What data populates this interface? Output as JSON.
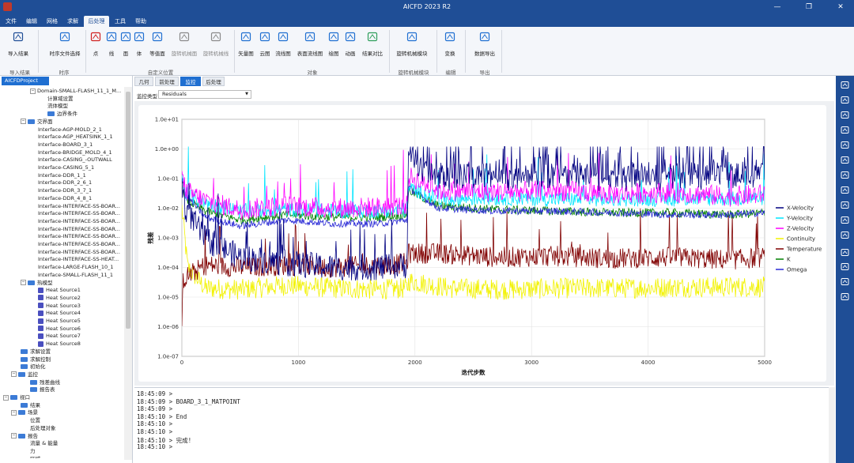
{
  "window": {
    "title": "AICFD 2023 R2",
    "min": "—",
    "restore": "❐",
    "close": "✕"
  },
  "menu": [
    {
      "label": "文件",
      "active": false,
      "x": 2,
      "w": 24
    },
    {
      "label": "编辑",
      "active": false,
      "x": 28,
      "w": 24
    },
    {
      "label": "网格",
      "active": false,
      "x": 54,
      "w": 24
    },
    {
      "label": "求解",
      "active": false,
      "x": 80,
      "w": 24
    },
    {
      "label": "后处理",
      "active": true,
      "x": 106,
      "w": 32
    },
    {
      "label": "工具",
      "active": false,
      "x": 140,
      "w": 24
    },
    {
      "label": "帮助",
      "active": false,
      "x": 166,
      "w": 24
    }
  ],
  "ribbon": {
    "buttons": [
      {
        "name": "import-results",
        "label": "导入结果",
        "icon": "import-icon"
      },
      {
        "name": "time-series-select",
        "label": "时序文件选择",
        "icon": "clock-icon"
      },
      {
        "name": "point",
        "label": "点",
        "icon": "point-icon"
      },
      {
        "name": "line",
        "label": "线",
        "icon": "line-icon"
      },
      {
        "name": "surface",
        "label": "面",
        "icon": "surface-icon"
      },
      {
        "name": "volume",
        "label": "体",
        "icon": "volume-icon"
      },
      {
        "name": "isosurface",
        "label": "等值面",
        "icon": "isosurface-icon"
      },
      {
        "name": "rotating-surface",
        "label": "旋转机械面",
        "icon": "rotating-surface-icon"
      },
      {
        "name": "rotating-line",
        "label": "旋转机械线",
        "icon": "rotating-line-icon"
      },
      {
        "name": "vector-plot",
        "label": "矢量图",
        "icon": "vector-icon"
      },
      {
        "name": "contour-plot",
        "label": "云图",
        "icon": "contour-icon"
      },
      {
        "name": "streamline-plot",
        "label": "流线图",
        "icon": "streamline-icon"
      },
      {
        "name": "surface-streamline",
        "label": "表面流线图",
        "icon": "surface-streamline-icon"
      },
      {
        "name": "xy-plot",
        "label": "绘图",
        "icon": "plot-icon"
      },
      {
        "name": "animation",
        "label": "动画",
        "icon": "animation-icon"
      },
      {
        "name": "result-compare",
        "label": "结果对比",
        "icon": "compare-icon"
      },
      {
        "name": "rotating-module",
        "label": "旋转机械模块",
        "icon": "rotating-module-icon"
      },
      {
        "name": "transform",
        "label": "变换",
        "icon": "transform-icon"
      },
      {
        "name": "data-export",
        "label": "数据导出",
        "icon": "export-icon"
      }
    ],
    "groups": [
      "导入结果",
      "时序",
      "自定义位置",
      "对象",
      "旋转机械模块",
      "编辑",
      "导出"
    ]
  },
  "project_tab": "AICFDProject",
  "tree": [
    {
      "label": "Domain-SMALL-FLASH_11_1_M...",
      "indent": 38,
      "toggle": "−",
      "icon": "none"
    },
    {
      "label": "计算域设置",
      "indent": 60,
      "toggle": "",
      "icon": "none"
    },
    {
      "label": "流体模型",
      "indent": 60,
      "toggle": "",
      "icon": "none"
    },
    {
      "label": "边界条件",
      "indent": 60,
      "toggle": "",
      "icon": "folder"
    },
    {
      "label": "交界面",
      "indent": 26,
      "toggle": "−",
      "icon": "folder"
    },
    {
      "label": "Interface-AGP-MOLD_2_1",
      "indent": 48,
      "toggle": "",
      "icon": "none"
    },
    {
      "label": "Interface-AGP_HEATSINK_1_1",
      "indent": 48,
      "toggle": "",
      "icon": "none"
    },
    {
      "label": "Interface-BOARD_3_1",
      "indent": 48,
      "toggle": "",
      "icon": "none"
    },
    {
      "label": "Interface-BRIDGE_MOLD_4_1",
      "indent": 48,
      "toggle": "",
      "icon": "none"
    },
    {
      "label": "Interface-CASING_-OUTWALL",
      "indent": 48,
      "toggle": "",
      "icon": "none"
    },
    {
      "label": "Interface-CASING_5_1",
      "indent": 48,
      "toggle": "",
      "icon": "none"
    },
    {
      "label": "Interface-DDR_1_1",
      "indent": 48,
      "toggle": "",
      "icon": "none"
    },
    {
      "label": "Interface-DDR_2_6_1",
      "indent": 48,
      "toggle": "",
      "icon": "none"
    },
    {
      "label": "Interface-DDR_3_7_1",
      "indent": 48,
      "toggle": "",
      "icon": "none"
    },
    {
      "label": "Interface-DDR_4_8_1",
      "indent": 48,
      "toggle": "",
      "icon": "none"
    },
    {
      "label": "Interface-INTERFACE-SS-BOAR...",
      "indent": 48,
      "toggle": "",
      "icon": "none"
    },
    {
      "label": "Interface-INTERFACE-SS-BOAR...",
      "indent": 48,
      "toggle": "",
      "icon": "none"
    },
    {
      "label": "Interface-INTERFACE-SS-BOAR...",
      "indent": 48,
      "toggle": "",
      "icon": "none"
    },
    {
      "label": "Interface-INTERFACE-SS-BOAR...",
      "indent": 48,
      "toggle": "",
      "icon": "none"
    },
    {
      "label": "Interface-INTERFACE-SS-BOAR...",
      "indent": 48,
      "toggle": "",
      "icon": "none"
    },
    {
      "label": "Interface-INTERFACE-SS-BOAR...",
      "indent": 48,
      "toggle": "",
      "icon": "none"
    },
    {
      "label": "Interface-INTERFACE-SS-BOAR...",
      "indent": 48,
      "toggle": "",
      "icon": "none"
    },
    {
      "label": "Interface-INTERFACE-SS-HEAT...",
      "indent": 48,
      "toggle": "",
      "icon": "none"
    },
    {
      "label": "Interface-LARGE-FLASH_10_1",
      "indent": 48,
      "toggle": "",
      "icon": "none"
    },
    {
      "label": "Interface-SMALL-FLASH_11_1",
      "indent": 48,
      "toggle": "",
      "icon": "none"
    },
    {
      "label": "热模型",
      "indent": 26,
      "toggle": "−",
      "icon": "folder"
    },
    {
      "label": "Heat Source1",
      "indent": 48,
      "toggle": "",
      "icon": "source"
    },
    {
      "label": "Heat Source2",
      "indent": 48,
      "toggle": "",
      "icon": "source"
    },
    {
      "label": "Heat Source3",
      "indent": 48,
      "toggle": "",
      "icon": "source"
    },
    {
      "label": "Heat Source4",
      "indent": 48,
      "toggle": "",
      "icon": "source"
    },
    {
      "label": "Heat Source5",
      "indent": 48,
      "toggle": "",
      "icon": "source"
    },
    {
      "label": "Heat Source6",
      "indent": 48,
      "toggle": "",
      "icon": "source"
    },
    {
      "label": "Heat Source7",
      "indent": 48,
      "toggle": "",
      "icon": "source"
    },
    {
      "label": "Heat Source8",
      "indent": 48,
      "toggle": "",
      "icon": "source"
    },
    {
      "label": "求解设置",
      "indent": 26,
      "toggle": "",
      "icon": "folder"
    },
    {
      "label": "求解控制",
      "indent": 26,
      "toggle": "",
      "icon": "folder"
    },
    {
      "label": "初始化",
      "indent": 26,
      "toggle": "",
      "icon": "folder"
    },
    {
      "label": "监控",
      "indent": 14,
      "toggle": "−",
      "icon": "folder"
    },
    {
      "label": "残差曲线",
      "indent": 38,
      "toggle": "",
      "icon": "folder"
    },
    {
      "label": "报告表",
      "indent": 38,
      "toggle": "",
      "icon": "folder"
    },
    {
      "label": "视口",
      "indent": 4,
      "toggle": "−",
      "icon": "folder"
    },
    {
      "label": "结果",
      "indent": 26,
      "toggle": "",
      "icon": "folder"
    },
    {
      "label": "场景",
      "indent": 14,
      "toggle": "−",
      "icon": "folder"
    },
    {
      "label": "位置",
      "indent": 38,
      "toggle": "",
      "icon": "none"
    },
    {
      "label": "后处理对象",
      "indent": 38,
      "toggle": "",
      "icon": "none"
    },
    {
      "label": "报告",
      "indent": 14,
      "toggle": "−",
      "icon": "folder"
    },
    {
      "label": "流量 & 能量",
      "indent": 38,
      "toggle": "",
      "icon": "none"
    },
    {
      "label": "力",
      "indent": 38,
      "toggle": "",
      "icon": "none"
    },
    {
      "label": "区域",
      "indent": 38,
      "toggle": "",
      "icon": "none"
    }
  ],
  "tabs": [
    {
      "label": "几何",
      "active": false
    },
    {
      "label": "前处理",
      "active": false
    },
    {
      "label": "监控",
      "active": true
    },
    {
      "label": "后处理",
      "active": false
    }
  ],
  "monitor": {
    "type_label": "监控类型",
    "type_value": "Residuals"
  },
  "chart_data": {
    "type": "line",
    "title": "",
    "xlabel": "迭代步数",
    "ylabel": "残差",
    "xlim": [
      0,
      5000
    ],
    "ylim": [
      1e-07,
      10
    ],
    "yscale": "log",
    "xticks": [
      "0",
      "1000",
      "2000",
      "3000",
      "4000",
      "5000"
    ],
    "yticks": [
      "1.0e-07",
      "1.0e-06",
      "1.0e-05",
      "1.0e-04",
      "1.0e-03",
      "1.0e-02",
      "1.0e-01",
      "1.0e+00",
      "1.0e+01"
    ],
    "grid": true,
    "legend_position": "right",
    "series": [
      {
        "name": "X-Velocity",
        "color": "#000080",
        "noise": 0.45,
        "spikes": 0.06,
        "points": [
          [
            0,
            0.08
          ],
          [
            20,
            0.012
          ],
          [
            200,
            0.0009
          ],
          [
            500,
            0.00022
          ],
          [
            900,
            0.00014
          ],
          [
            1300,
            0.0001
          ],
          [
            1700,
            0.0001
          ],
          [
            1930,
            0.00012
          ],
          [
            1945,
            1.0
          ],
          [
            2100,
            0.13
          ],
          [
            2500,
            0.13
          ],
          [
            3000,
            0.13
          ],
          [
            3500,
            0.13
          ],
          [
            4000,
            0.13
          ],
          [
            4500,
            0.13
          ],
          [
            5000,
            0.13
          ]
        ]
      },
      {
        "name": "Y-Velocity",
        "color": "#00e5ff",
        "noise": 0.25,
        "spikes": 0.02,
        "points": [
          [
            0,
            0.12
          ],
          [
            30,
            0.03
          ],
          [
            200,
            0.015
          ],
          [
            500,
            0.008
          ],
          [
            900,
            0.009
          ],
          [
            1300,
            0.008
          ],
          [
            1700,
            0.008
          ],
          [
            1930,
            0.009
          ],
          [
            1945,
            0.05
          ],
          [
            2200,
            0.02
          ],
          [
            2700,
            0.022
          ],
          [
            3200,
            0.02
          ],
          [
            3700,
            0.02
          ],
          [
            4200,
            0.02
          ],
          [
            4700,
            0.021
          ],
          [
            5000,
            0.022
          ]
        ]
      },
      {
        "name": "Z-Velocity",
        "color": "#ff00ff",
        "noise": 0.35,
        "spikes": 0.03,
        "points": [
          [
            0,
            0.12
          ],
          [
            30,
            0.04
          ],
          [
            200,
            0.018
          ],
          [
            500,
            0.009
          ],
          [
            900,
            0.012
          ],
          [
            1300,
            0.01
          ],
          [
            1700,
            0.011
          ],
          [
            1930,
            0.012
          ],
          [
            1945,
            0.12
          ],
          [
            2200,
            0.04
          ],
          [
            2700,
            0.035
          ],
          [
            3200,
            0.04
          ],
          [
            3700,
            0.03
          ],
          [
            4200,
            0.035
          ],
          [
            4700,
            0.025
          ],
          [
            5000,
            0.03
          ]
        ]
      },
      {
        "name": "Continuity",
        "color": "#f2f200",
        "noise": 0.35,
        "spikes": 0.0,
        "points": [
          [
            0,
            0.01
          ],
          [
            50,
            0.0001
          ],
          [
            200,
            2e-05
          ],
          [
            500,
            1.8e-05
          ],
          [
            900,
            2.5e-05
          ],
          [
            1300,
            2e-05
          ],
          [
            1700,
            1.8e-05
          ],
          [
            1930,
            2e-05
          ],
          [
            1950,
            3.5e-05
          ],
          [
            2300,
            2e-05
          ],
          [
            2800,
            1.8e-05
          ],
          [
            3300,
            2e-05
          ],
          [
            3800,
            2e-05
          ],
          [
            4300,
            2.2e-05
          ],
          [
            5000,
            2.2e-05
          ]
        ]
      },
      {
        "name": "Temperature",
        "color": "#800000",
        "noise": 0.35,
        "spikes": 0.04,
        "points": [
          [
            0,
            5e-07
          ],
          [
            10,
            4e-05
          ],
          [
            200,
            0.00012
          ],
          [
            500,
            0.0001
          ],
          [
            900,
            0.00012
          ],
          [
            1300,
            0.0001
          ],
          [
            1700,
            0.00012
          ],
          [
            1930,
            0.00014
          ],
          [
            1945,
            0.0003
          ],
          [
            2200,
            0.0003
          ],
          [
            2700,
            0.00022
          ],
          [
            3200,
            0.00024
          ],
          [
            3700,
            0.0002
          ],
          [
            4200,
            0.00022
          ],
          [
            4700,
            0.00018
          ],
          [
            5000,
            0.00022
          ]
        ]
      },
      {
        "name": "K",
        "color": "#008000",
        "noise": 0.15,
        "spikes": 0.0,
        "points": [
          [
            0,
            0.1
          ],
          [
            30,
            0.02
          ],
          [
            200,
            0.008
          ],
          [
            500,
            0.004
          ],
          [
            900,
            0.006
          ],
          [
            1300,
            0.005
          ],
          [
            1700,
            0.005
          ],
          [
            1930,
            0.006
          ],
          [
            1945,
            0.04
          ],
          [
            2200,
            0.012
          ],
          [
            2700,
            0.009
          ],
          [
            3200,
            0.008
          ],
          [
            3700,
            0.007
          ],
          [
            4200,
            0.007
          ],
          [
            4700,
            0.006
          ],
          [
            5000,
            0.007
          ]
        ]
      },
      {
        "name": "Omega",
        "color": "#2b2bd6",
        "noise": 0.12,
        "spikes": 0.0,
        "points": [
          [
            0,
            0.12
          ],
          [
            30,
            0.03
          ],
          [
            200,
            0.005
          ],
          [
            500,
            0.0025
          ],
          [
            900,
            0.004
          ],
          [
            1300,
            0.003
          ],
          [
            1700,
            0.003
          ],
          [
            1930,
            0.004
          ],
          [
            1945,
            0.05
          ],
          [
            2200,
            0.01
          ],
          [
            2700,
            0.008
          ],
          [
            3200,
            0.008
          ],
          [
            3700,
            0.007
          ],
          [
            4200,
            0.006
          ],
          [
            4700,
            0.006
          ],
          [
            5000,
            0.007
          ]
        ]
      }
    ]
  },
  "console": [
    "18:45:09 >",
    "18:45:09 > BOARD_3_1_MATPOINT",
    "18:45:09 >",
    "18:45:10 > End",
    "18:45:10 >",
    "18:45:10 >",
    "18:45:10 > 完成!",
    "18:45:10 >"
  ],
  "right_tools": [
    "fit-view-icon",
    "rotate-icon",
    "axis-x-icon",
    "axis-neg-x-icon",
    "axis-y-icon",
    "axis-neg-y-icon",
    "axis-z-icon",
    "axis-neg-z-icon",
    "rotate-cw-icon",
    "rotate-ccw-icon",
    "zoom-icon",
    "ruler-icon",
    "axes-icon",
    "palette-icon",
    "camera-icon"
  ]
}
